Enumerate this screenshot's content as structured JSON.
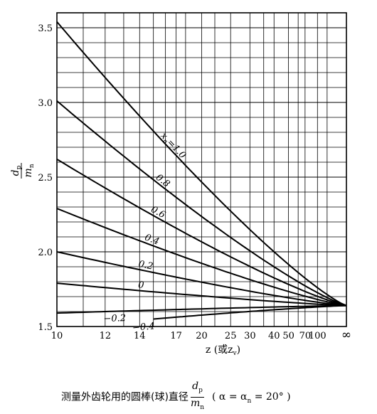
{
  "chart_data": {
    "type": "line",
    "title": "",
    "ylabel_num": "d",
    "ylabel_num_sub": "p",
    "ylabel_den": "m",
    "ylabel_den_sub": "n",
    "xlabel": "z (或z",
    "xlabel_sub": "v",
    "xlabel_close": ")",
    "ylim": [
      1.5,
      3.6
    ],
    "x_ticks": [
      {
        "label": "10",
        "u": 0
      },
      {
        "label": "12",
        "u": 0.1667
      },
      {
        "label": "14",
        "u": 0.2857
      },
      {
        "label": "17",
        "u": 0.4118
      },
      {
        "label": "20",
        "u": 0.5
      },
      {
        "label": "25",
        "u": 0.6
      },
      {
        "label": "30",
        "u": 0.6667
      },
      {
        "label": "40",
        "u": 0.75
      },
      {
        "label": "50",
        "u": 0.8
      },
      {
        "label": "70",
        "u": 0.8571
      },
      {
        "label": "100",
        "u": 0.9
      },
      {
        "label": "∞",
        "u": 1
      }
    ],
    "x_grid_z": [
      10,
      11,
      12,
      13,
      14,
      15,
      16,
      17,
      18,
      20,
      22,
      25,
      30,
      35,
      40,
      50,
      60,
      70,
      100,
      150
    ],
    "y_ticks": [
      {
        "label": "1.5",
        "v": 1.5
      },
      {
        "label": "2.0",
        "v": 2.0
      },
      {
        "label": "2.5",
        "v": 2.5
      },
      {
        "label": "3.0",
        "v": 3.0
      },
      {
        "label": "3.5",
        "v": 3.5
      }
    ],
    "y_grid_step": 0.1,
    "series": [
      {
        "name": "x",
        "name_sub": "n",
        "name_suffix": "=1.0",
        "x_start": 10,
        "y_start": 3.54,
        "y_end": 1.64
      },
      {
        "name": "0.8",
        "x_start": 10,
        "y_start": 3.01,
        "y_end": 1.64
      },
      {
        "name": "0.6",
        "x_start": 10,
        "y_start": 2.62,
        "y_end": 1.64
      },
      {
        "name": "0.4",
        "x_start": 10,
        "y_start": 2.29,
        "y_end": 1.64
      },
      {
        "name": "0.2",
        "x_start": 10,
        "y_start": 2.0,
        "y_end": 1.64
      },
      {
        "name": "0",
        "x_start": 10,
        "y_start": 1.79,
        "y_end": 1.64
      },
      {
        "name": "−0.2",
        "x_start": 10,
        "y_start": 1.59,
        "y_end": 1.64
      },
      {
        "name": "−0.4",
        "x_start": 15,
        "y_start": 1.55,
        "y_end": 1.64
      }
    ]
  },
  "caption": {
    "prefix": "测量外齿轮用的圆棒(球)直径",
    "frac_num": "d",
    "frac_num_sub": "p",
    "frac_den": "m",
    "frac_den_sub": "n",
    "condition": "( α = α",
    "condition_sub": "n",
    "condition_tail": " = 20° )"
  }
}
